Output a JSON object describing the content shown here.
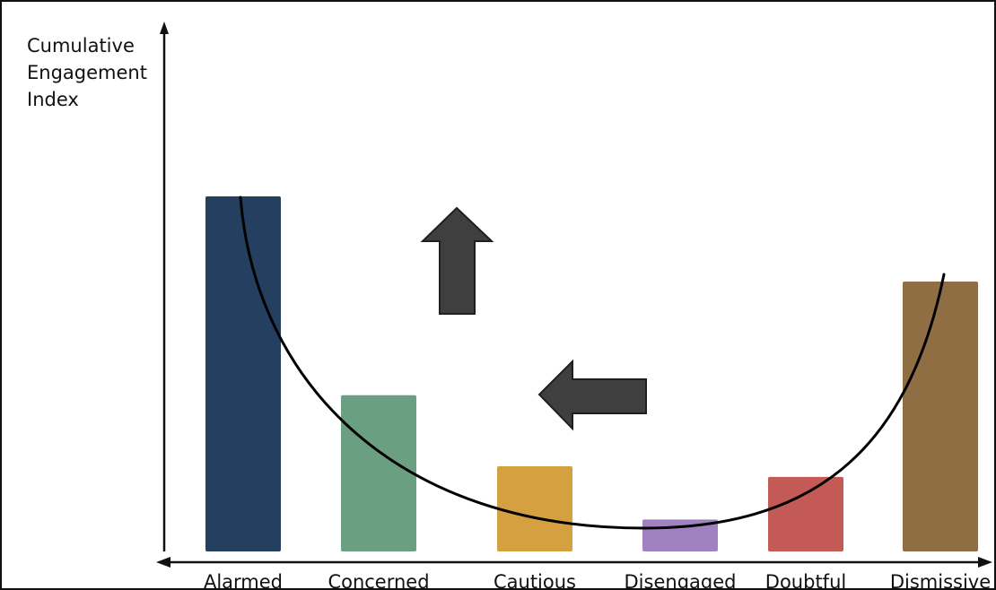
{
  "chart_data": {
    "type": "bar",
    "title": "",
    "xlabel": "",
    "ylabel": "Cumulative\nEngagement\nIndex",
    "categories": [
      "Alarmed",
      "Concerned",
      "Cautious",
      "Disengaged",
      "Doubtful",
      "Dismissive"
    ],
    "values": [
      100,
      44,
      24,
      9,
      21,
      76
    ],
    "ylim": [
      0,
      100
    ],
    "colors": [
      "#243F60",
      "#6B9F82",
      "#D4A040",
      "#9F82BF",
      "#C35A55",
      "#8F6E43"
    ],
    "y_ticks_shown": false,
    "grid": false,
    "legend": "none",
    "overlay_curve": {
      "type": "smooth-u-curve",
      "color": "#000000"
    },
    "annotations": [
      {
        "type": "arrow",
        "direction": "up",
        "color": "#3F3F3F"
      },
      {
        "type": "arrow",
        "direction": "left",
        "color": "#3F3F3F"
      }
    ]
  }
}
